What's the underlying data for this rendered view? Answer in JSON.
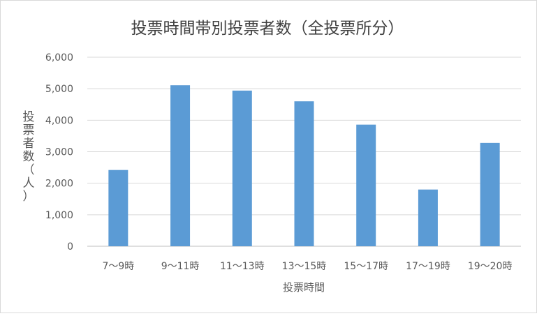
{
  "chart_data": {
    "type": "bar",
    "title": "投票時間帯別投票者数（全投票所分）",
    "xlabel": "投票時間",
    "ylabel": "投票者数（人）",
    "ylim": [
      0,
      6000
    ],
    "yticks": [
      "0",
      "1,000",
      "2,000",
      "3,000",
      "4,000",
      "5,000",
      "6,000"
    ],
    "categories": [
      "7～9時",
      "9～11時",
      "11～13時",
      "13～15時",
      "15～17時",
      "17～19時",
      "19～20時"
    ],
    "values": [
      2420,
      5110,
      4940,
      4600,
      3860,
      1800,
      3280
    ],
    "grid": true,
    "legend": "none",
    "bar_color": "#5b9bd5"
  }
}
